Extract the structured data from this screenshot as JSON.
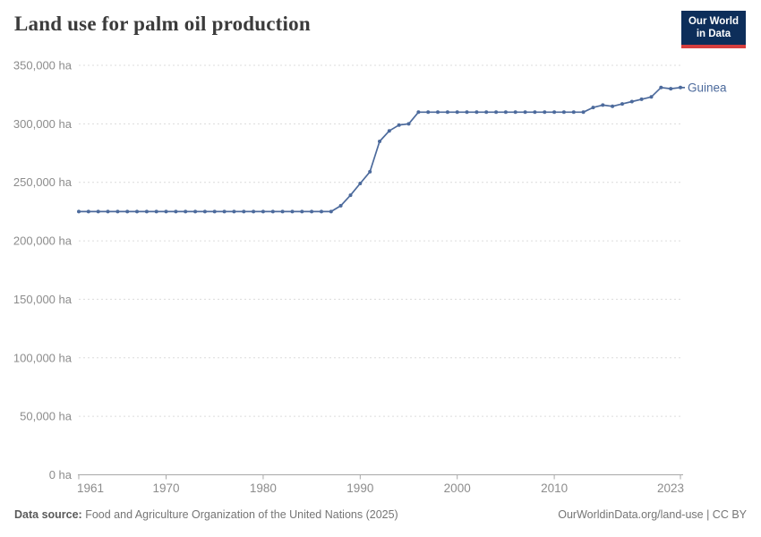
{
  "header": {
    "title": "Land use for palm oil production",
    "logo": {
      "line1": "Our World",
      "line2": "in Data"
    }
  },
  "chart_data": {
    "type": "line",
    "title": "Land use for palm oil production",
    "xlabel": "",
    "ylabel": "",
    "x_ticks": [
      1961,
      1970,
      1980,
      1990,
      2000,
      2010,
      2023
    ],
    "y_ticks": [
      0,
      50000,
      100000,
      150000,
      200000,
      250000,
      300000,
      350000
    ],
    "y_tick_suffix": " ha",
    "xlim": [
      1961,
      2023
    ],
    "ylim": [
      0,
      350000
    ],
    "grid": "horizontal-dashed",
    "legend_position": "end-of-line-label",
    "series": [
      {
        "name": "Guinea",
        "color": "#4C6A9C",
        "x": [
          1961,
          1962,
          1963,
          1964,
          1965,
          1966,
          1967,
          1968,
          1969,
          1970,
          1971,
          1972,
          1973,
          1974,
          1975,
          1976,
          1977,
          1978,
          1979,
          1980,
          1981,
          1982,
          1983,
          1984,
          1985,
          1986,
          1987,
          1988,
          1989,
          1990,
          1991,
          1992,
          1993,
          1994,
          1995,
          1996,
          1997,
          1998,
          1999,
          2000,
          2001,
          2002,
          2003,
          2004,
          2005,
          2006,
          2007,
          2008,
          2009,
          2010,
          2011,
          2012,
          2013,
          2014,
          2015,
          2016,
          2017,
          2018,
          2019,
          2020,
          2021,
          2022,
          2023
        ],
        "values": [
          225000,
          225000,
          225000,
          225000,
          225000,
          225000,
          225000,
          225000,
          225000,
          225000,
          225000,
          225000,
          225000,
          225000,
          225000,
          225000,
          225000,
          225000,
          225000,
          225000,
          225000,
          225000,
          225000,
          225000,
          225000,
          225000,
          225000,
          230000,
          239000,
          249000,
          259000,
          285000,
          294000,
          299000,
          300000,
          310000,
          310000,
          310000,
          310000,
          310000,
          310000,
          310000,
          310000,
          310000,
          310000,
          310000,
          310000,
          310000,
          310000,
          310000,
          310000,
          310000,
          310000,
          314000,
          316000,
          315000,
          317000,
          319000,
          321000,
          323000,
          331000,
          330000,
          331000
        ]
      }
    ]
  },
  "colors": {
    "accent": "#4C6A9C",
    "grid": "#dcdcdc",
    "axis": "#a8a8a8",
    "tick_label": "#8c8c8c",
    "title": "#3b3b3b",
    "logo_bg": "#0d2e5a",
    "logo_red": "#d63e3e"
  },
  "footer": {
    "source_label": "Data source:",
    "source_text": " Food and Agriculture Organization of the United Nations (2025)",
    "rights": "OurWorldinData.org/land-use | CC BY"
  }
}
